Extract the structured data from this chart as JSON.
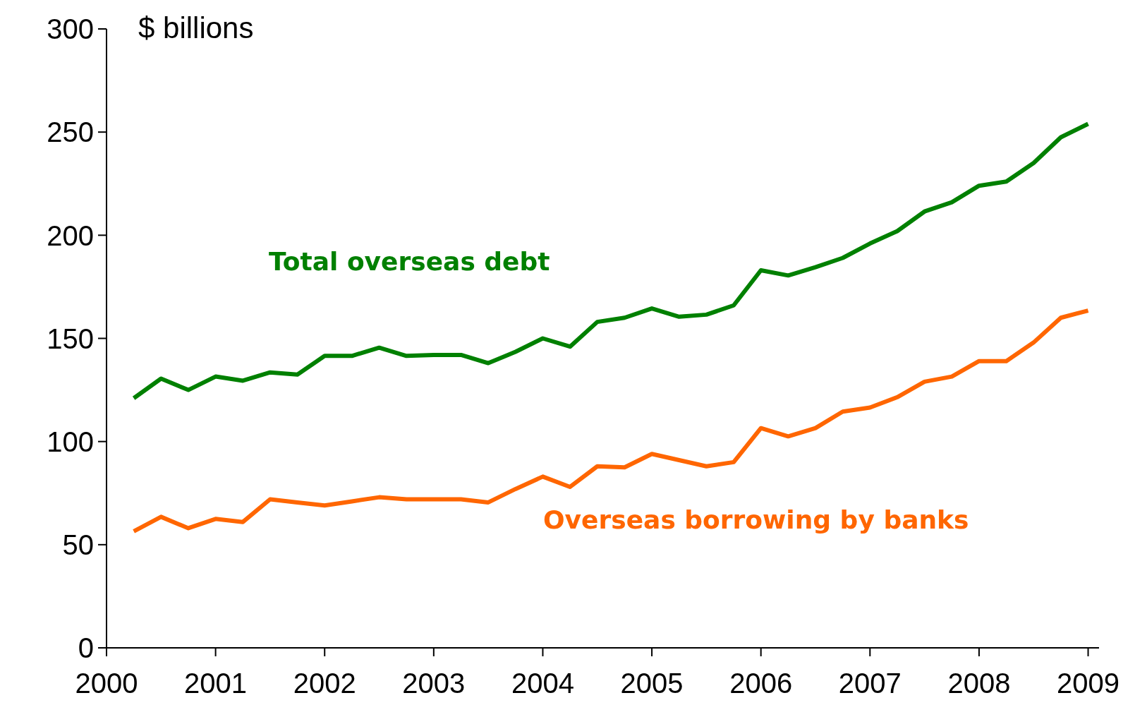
{
  "chart_data": {
    "type": "line",
    "ylabel": "$ billions",
    "x": [
      2000.25,
      2000.5,
      2000.75,
      2001,
      2001.25,
      2001.5,
      2001.75,
      2002,
      2002.25,
      2002.5,
      2002.75,
      2003,
      2003.25,
      2003.5,
      2003.75,
      2004,
      2004.25,
      2004.5,
      2004.75,
      2005,
      2005.25,
      2005.5,
      2005.75,
      2006,
      2006.25,
      2006.5,
      2006.75,
      2007,
      2007.25,
      2007.5,
      2007.75,
      2008,
      2008.25,
      2008.5,
      2008.75,
      2009
    ],
    "series": [
      {
        "name": "Total overseas debt",
        "color": "#008000",
        "values": [
          121,
          130.5,
          125,
          131.5,
          129.5,
          133.5,
          132.5,
          141.5,
          141.5,
          145.5,
          141.5,
          142,
          142,
          138,
          143.5,
          150,
          146,
          158,
          160,
          164.5,
          160.5,
          161.5,
          166,
          183,
          180.5,
          184.5,
          189,
          196,
          202,
          211.5,
          216,
          224,
          226,
          235,
          247.5,
          254
        ]
      },
      {
        "name": "Overseas borrowing by banks",
        "color": "#ff6600",
        "values": [
          56.5,
          63.5,
          58,
          62.5,
          61,
          72,
          70.5,
          69,
          71,
          73,
          72,
          72,
          72,
          70.5,
          77,
          83,
          78,
          88,
          87.5,
          94,
          91,
          88,
          90,
          106.5,
          102.5,
          106.5,
          114.5,
          116.5,
          121.5,
          129,
          131.5,
          139,
          139,
          148,
          160,
          163.5
        ]
      }
    ],
    "xlim": [
      2000,
      2009.1
    ],
    "xticks": [
      2000,
      2001,
      2002,
      2003,
      2004,
      2005,
      2006,
      2007,
      2008,
      2009
    ],
    "ylim": [
      0,
      300
    ],
    "yticks": [
      0,
      50,
      100,
      150,
      200,
      250,
      300
    ],
    "grid": false,
    "legend": false,
    "marker": "none",
    "line_style": "solid"
  }
}
